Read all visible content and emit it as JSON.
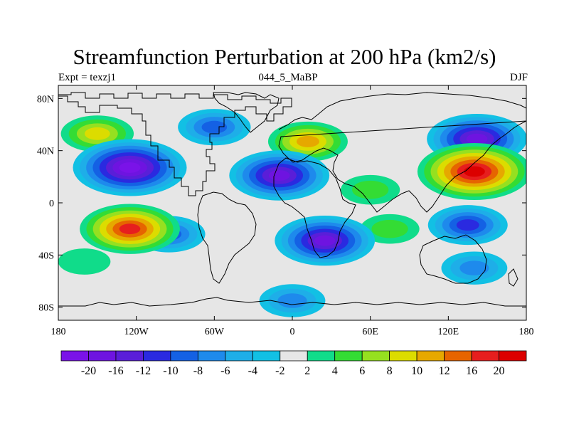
{
  "figure": {
    "title": "Streamfunction Perturbation at 200 hPa (km2/s)",
    "left_string": "Expt = texzj1",
    "center_string": "044_5_MaBP",
    "right_string": "DJF"
  },
  "map": {
    "variable": "streamfunction perturbation",
    "level": "200 hPa",
    "units": "km2/s",
    "lon_labels": [
      "180",
      "120W",
      "60W",
      "0",
      "60E",
      "120E",
      "180"
    ],
    "lat_labels": [
      "80N",
      "40N",
      "0",
      "40S",
      "80S"
    ],
    "anomaly_centers": [
      {
        "lon": -125,
        "lat": 27,
        "value": -20
      },
      {
        "lon": -125,
        "lat": -20,
        "value": 16
      },
      {
        "lon": -150,
        "lat": 53,
        "value": 8
      },
      {
        "lon": 140,
        "lat": 24,
        "value": 20
      },
      {
        "lon": 142,
        "lat": 49,
        "value": -16
      },
      {
        "lon": 135,
        "lat": -17,
        "value": -10
      },
      {
        "lon": 25,
        "lat": -29,
        "value": -16
      },
      {
        "lon": -10,
        "lat": 21,
        "value": -16
      },
      {
        "lon": 12,
        "lat": 47,
        "value": 10
      },
      {
        "lon": 60,
        "lat": 10,
        "value": 4
      },
      {
        "lon": -95,
        "lat": -24,
        "value": -8
      },
      {
        "lon": 0,
        "lat": -75,
        "value": -6
      },
      {
        "lon": 140,
        "lat": -50,
        "value": -6
      },
      {
        "lon": -60,
        "lat": 58,
        "value": -8
      },
      {
        "lon": -160,
        "lat": -45,
        "value": 2
      },
      {
        "lon": 75,
        "lat": -20,
        "value": 4
      }
    ]
  },
  "colorbar": {
    "labels": [
      "-20",
      "-16",
      "-12",
      "-10",
      "-8",
      "-6",
      "-4",
      "-2",
      "2",
      "4",
      "6",
      "8",
      "10",
      "12",
      "16",
      "20"
    ],
    "colors": [
      "#7a13e8",
      "#6e14e0",
      "#5a1ed8",
      "#2a2ae0",
      "#1461e4",
      "#1e8aec",
      "#1eaee8",
      "#12c0e4",
      "#e6e6e6",
      "#10dc8a",
      "#34dc34",
      "#96e020",
      "#dcdc00",
      "#e6a800",
      "#e66400",
      "#e61e1e",
      "#dc0000"
    ]
  }
}
